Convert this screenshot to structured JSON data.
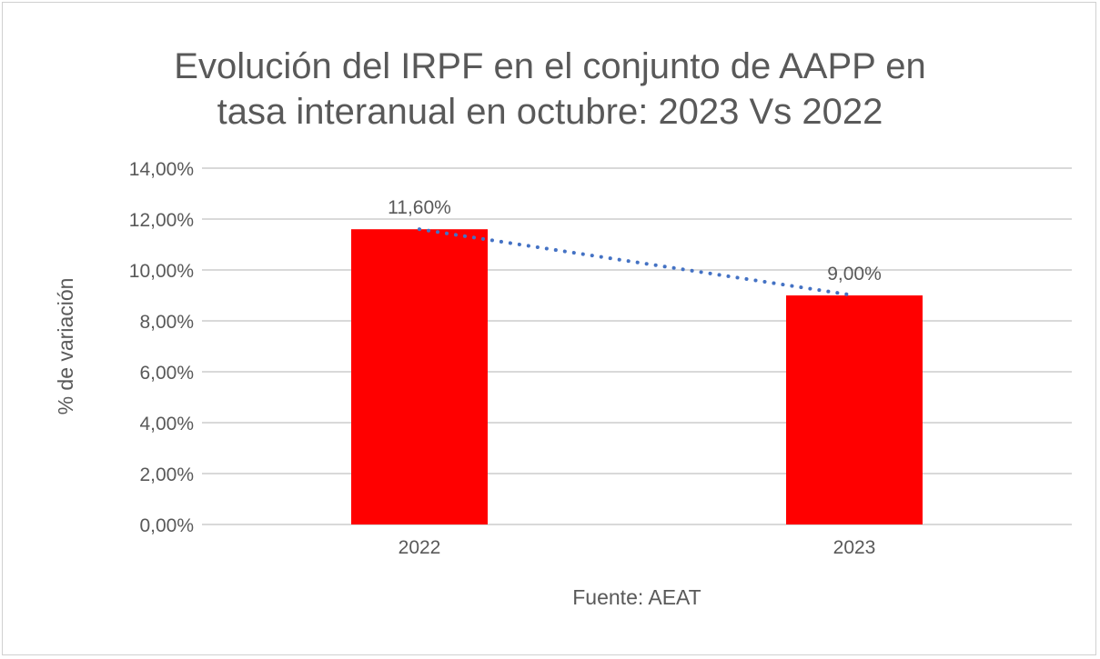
{
  "chart_data": {
    "type": "bar",
    "title_lines": [
      "Evolución del IRPF en el conjunto de AAPP en",
      "tasa interanual en octubre: 2023 Vs 2022"
    ],
    "categories": [
      "2022",
      "2023"
    ],
    "values": [
      11.6,
      9.0
    ],
    "data_labels": [
      "11,60%",
      "9,00%"
    ],
    "ylabel": "% de variación",
    "xlabel": "Fuente: AEAT",
    "ylim": [
      0,
      14
    ],
    "yticks": [
      0,
      2,
      4,
      6,
      8,
      10,
      12,
      14
    ],
    "ytick_labels": [
      "0,00%",
      "2,00%",
      "4,00%",
      "6,00%",
      "8,00%",
      "10,00%",
      "12,00%",
      "14,00%"
    ],
    "grid": true,
    "bar_color": "#ff0000",
    "trendline": {
      "type": "linear",
      "style": "dotted",
      "color": "#4472c4"
    }
  }
}
